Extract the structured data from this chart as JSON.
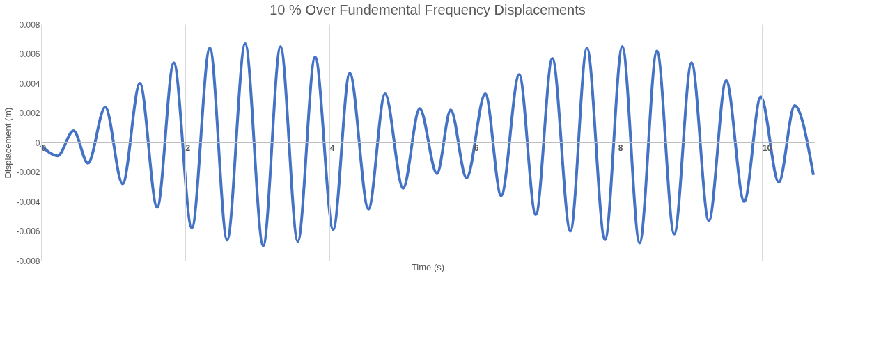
{
  "chart_data": {
    "type": "line",
    "title": "10 % Over Fundemental Frequency Displacements",
    "xlabel": "Time (s)",
    "ylabel": "Displacement (m)",
    "x": [
      0,
      0.23,
      0.45,
      0.65,
      0.89,
      1.13,
      1.37,
      1.61,
      1.84,
      2.09,
      2.34,
      2.58,
      2.83,
      3.08,
      3.32,
      3.56,
      3.8,
      4.05,
      4.28,
      4.54,
      4.77,
      5.02,
      5.25,
      5.49,
      5.68,
      5.9,
      6.16,
      6.38,
      6.63,
      6.86,
      7.09,
      7.34,
      7.57,
      7.82,
      8.06,
      8.3,
      8.54,
      8.78,
      9.02,
      9.26,
      9.5,
      9.75,
      9.98,
      10.23,
      10.45,
      10.71
    ],
    "series": [
      {
        "color": "#4472c4",
        "values": [
          -0.0002,
          -0.0009,
          0.0008,
          -0.0014,
          0.0024,
          -0.0028,
          0.004,
          -0.0044,
          0.0054,
          -0.0058,
          0.0064,
          -0.0066,
          0.0067,
          -0.007,
          0.0065,
          -0.0067,
          0.0058,
          -0.0059,
          0.0047,
          -0.0045,
          0.0033,
          -0.0031,
          0.0023,
          -0.0021,
          0.0022,
          -0.0024,
          0.0033,
          -0.0036,
          0.0046,
          -0.0049,
          0.0057,
          -0.006,
          0.0064,
          -0.0066,
          0.0065,
          -0.0068,
          0.0062,
          -0.0062,
          0.0054,
          -0.0053,
          0.0042,
          -0.004,
          0.0031,
          -0.0027,
          0.0025,
          -0.0022
        ]
      }
    ],
    "xlim": [
      0,
      10.72
    ],
    "xticks": [
      0,
      2,
      4,
      6,
      8,
      10
    ],
    "ylim": [
      -0.008,
      0.008
    ],
    "yticks": [
      -0.008,
      -0.006,
      -0.004,
      -0.002,
      0,
      0.002,
      0.004,
      0.006,
      0.008
    ],
    "grid": "x",
    "marker": "none",
    "line_style": "solid"
  }
}
